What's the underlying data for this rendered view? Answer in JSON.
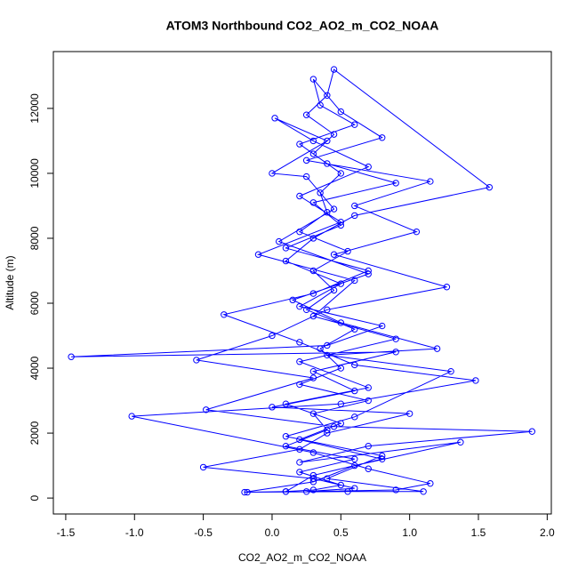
{
  "chart_data": {
    "type": "line",
    "title": "ATOM3 Northbound CO2_AO2_m_CO2_NOAA",
    "x_label": "CO2_AO2_m_CO2_NOAA",
    "y_label": "Altitude (m)",
    "xlim": [
      -1.59,
      2.03
    ],
    "ylim": [
      -490,
      13750
    ],
    "xticks": [
      {
        "value": -1.5,
        "label": "-1.5"
      },
      {
        "value": -1,
        "label": "-1.0"
      },
      {
        "value": -0.5,
        "label": "-0.5"
      },
      {
        "value": 0,
        "label": "0.0"
      },
      {
        "value": 0.5,
        "label": "0.5"
      },
      {
        "value": 1,
        "label": "1.0"
      },
      {
        "value": 1.5,
        "label": "1.5"
      },
      {
        "value": 2,
        "label": "2.0"
      }
    ],
    "yticks": [
      0,
      2000,
      4000,
      6000,
      8000,
      10000,
      12000
    ],
    "series": [
      {
        "color": "#0000ff",
        "x": [
          -0.18,
          0.1,
          0.3,
          0.5,
          0.2,
          0.6,
          0.1,
          0.4,
          0.3,
          0.7,
          0.2,
          0.5,
          0.35,
          0.6,
          0.25,
          0.45,
          0.3,
          0.55,
          0.2,
          0.4,
          0.35,
          0.5,
          0.3,
          0.45,
          0.25,
          0.4,
          0.45,
          1.58,
          0.6,
          0.3,
          0.1,
          0.5,
          0.2,
          0.8,
          0.4,
          -1.46,
          0.9,
          0.3,
          0.6,
          0.0,
          1.0,
          0.4,
          0.2,
          -0.5,
          0.3,
          0.6,
          0.25,
          0.9,
          1.15,
          0.7,
          0.3,
          -1.02,
          0.5,
          1.48,
          0.6,
          0.2,
          -0.35,
          0.3,
          0.7,
          0.1,
          0.5,
          0.3,
          0.9,
          0.4,
          0.2,
          0.6,
          0.35,
          0.3,
          0.5,
          0.8,
          0.25,
          1.15,
          0.6,
          1.05,
          0.45,
          1.27,
          0.4,
          0.0,
          -0.55,
          0.3,
          -0.48,
          0.45,
          1.89,
          0.7,
          0.2,
          1.37,
          0.6,
          0.3,
          -0.2,
          0.55,
          1.1,
          0.4,
          0.8,
          0.1,
          0.6,
          1.3,
          0.4,
          1.2,
          0.5,
          0.15,
          0.7,
          0.05,
          0.45,
          0.25,
          0.0,
          0.4,
          0.02,
          0.3,
          0.7,
          0.2,
          0.5,
          -0.1,
          0.6,
          0.3,
          0.9,
          0.2,
          0.7,
          0.1,
          0.5,
          0.2,
          0.8,
          0.3,
          0.1
        ],
        "values": [
          180,
          200,
          250,
          400,
          800,
          1200,
          1600,
          2100,
          2600,
          3000,
          3500,
          4000,
          4600,
          5200,
          5800,
          6400,
          7000,
          7600,
          8200,
          8800,
          9400,
          10000,
          10600,
          11200,
          11800,
          12400,
          13200,
          9570,
          8700,
          8000,
          7300,
          6600,
          5900,
          5300,
          4700,
          4350,
          4500,
          3900,
          3300,
          2800,
          2600,
          2000,
          1500,
          950,
          600,
          300,
          200,
          250,
          450,
          900,
          1400,
          2520,
          2900,
          3620,
          4100,
          4800,
          5650,
          6300,
          7000,
          7700,
          8400,
          9100,
          9700,
          10300,
          10900,
          11500,
          12100,
          12900,
          11900,
          11100,
          10400,
          9750,
          9000,
          8200,
          7500,
          6500,
          5800,
          5000,
          4250,
          3700,
          2720,
          2200,
          2050,
          1600,
          1100,
          1720,
          1000,
          500,
          180,
          200,
          200,
          600,
          1300,
          1900,
          2500,
          3900,
          4400,
          4600,
          5400,
          6100,
          6900,
          7900,
          8900,
          9900,
          10000,
          11000,
          11700,
          11000,
          10200,
          9300,
          8500,
          7500,
          6700,
          5600,
          4900,
          4200,
          3400,
          2900,
          2300,
          1800,
          1200,
          700,
          200
        ]
      }
    ]
  }
}
